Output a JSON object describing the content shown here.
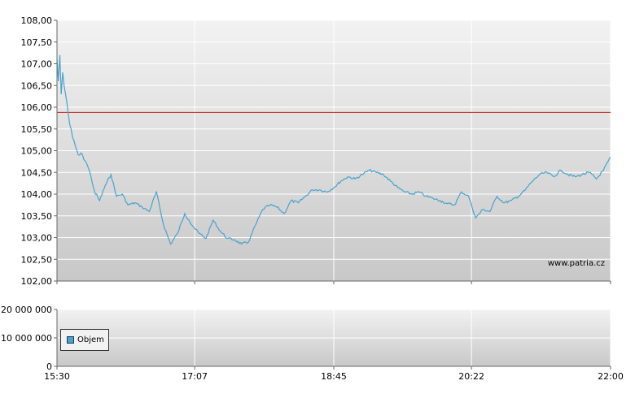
{
  "watermark": "www.patria.cz",
  "colors": {
    "price_line": "#4aa3cc",
    "reference_line": "#cc2222",
    "legend_swatch": "#4aa3cc"
  },
  "legend": {
    "label": "Objem"
  },
  "chart_data": [
    {
      "type": "line",
      "panel": "price",
      "ylim": [
        102,
        108
      ],
      "y_ticks": [
        "108,00",
        "107,50",
        "107,00",
        "106,50",
        "106,00",
        "105,50",
        "105,00",
        "104,50",
        "104,00",
        "103,50",
        "103,00",
        "102,50",
        "102,00"
      ],
      "x_ticks": [
        "15:30",
        "17:07",
        "18:45",
        "20:22",
        "22:00"
      ],
      "xlim": [
        "15:30",
        "22:00"
      ],
      "grid": true,
      "reference_line": 105.88,
      "series": [
        {
          "x": [
            "15:30",
            "15:31",
            "15:32",
            "15:33",
            "15:34",
            "15:35",
            "15:37",
            "15:39",
            "15:41",
            "15:43",
            "15:45",
            "15:48",
            "15:51",
            "15:54",
            "15:57",
            "16:00",
            "16:04",
            "16:08",
            "16:12",
            "16:16",
            "16:20",
            "16:25",
            "16:30",
            "16:35",
            "16:40",
            "16:45",
            "16:50",
            "16:55",
            "17:00",
            "17:03",
            "17:06",
            "17:10",
            "17:15",
            "17:20",
            "17:25",
            "17:30",
            "17:35",
            "17:40",
            "17:45",
            "17:50",
            "17:55",
            "18:00",
            "18:05",
            "18:10",
            "18:15",
            "18:20",
            "18:25",
            "18:30",
            "18:35",
            "18:40",
            "18:45",
            "18:50",
            "18:55",
            "19:00",
            "19:05",
            "19:10",
            "19:15",
            "19:20",
            "19:25",
            "19:30",
            "19:35",
            "19:40",
            "19:45",
            "19:50",
            "19:55",
            "20:00",
            "20:05",
            "20:10",
            "20:15",
            "20:20",
            "20:25",
            "20:30",
            "20:35",
            "20:40",
            "20:45",
            "20:50",
            "20:55",
            "21:00",
            "21:05",
            "21:10",
            "21:15",
            "21:20",
            "21:25",
            "21:30",
            "21:35",
            "21:40",
            "21:45",
            "21:50",
            "21:55",
            "22:00"
          ],
          "y": [
            107.1,
            106.6,
            107.2,
            106.3,
            106.8,
            106.5,
            106.1,
            105.6,
            105.3,
            105.1,
            104.9,
            104.9,
            104.7,
            104.4,
            104.0,
            103.85,
            104.2,
            104.45,
            103.95,
            104.0,
            103.75,
            103.8,
            103.7,
            103.6,
            104.05,
            103.3,
            102.85,
            103.1,
            103.55,
            103.4,
            103.25,
            103.1,
            102.98,
            103.4,
            103.15,
            102.98,
            102.95,
            102.85,
            102.9,
            103.3,
            103.65,
            103.75,
            103.7,
            103.55,
            103.85,
            103.8,
            103.95,
            104.1,
            104.1,
            104.05,
            104.15,
            104.3,
            104.4,
            104.35,
            104.45,
            104.55,
            104.5,
            104.45,
            104.3,
            104.15,
            104.05,
            104.0,
            104.05,
            103.95,
            103.9,
            103.85,
            103.78,
            103.75,
            104.05,
            103.95,
            103.45,
            103.65,
            103.6,
            103.95,
            103.8,
            103.85,
            103.95,
            104.1,
            104.3,
            104.45,
            104.5,
            104.4,
            104.55,
            104.45,
            104.4,
            104.45,
            104.5,
            104.35,
            104.55,
            104.85
          ]
        }
      ]
    },
    {
      "type": "bar",
      "panel": "volume",
      "ylim": [
        0,
        20000000
      ],
      "y_ticks": [
        "20 000 000",
        "10 000 000",
        "0"
      ],
      "x_ticks": [
        "15:30",
        "17:07",
        "18:45",
        "20:22",
        "22:00"
      ],
      "series": [
        {
          "name": "Objem",
          "values": []
        }
      ]
    }
  ]
}
